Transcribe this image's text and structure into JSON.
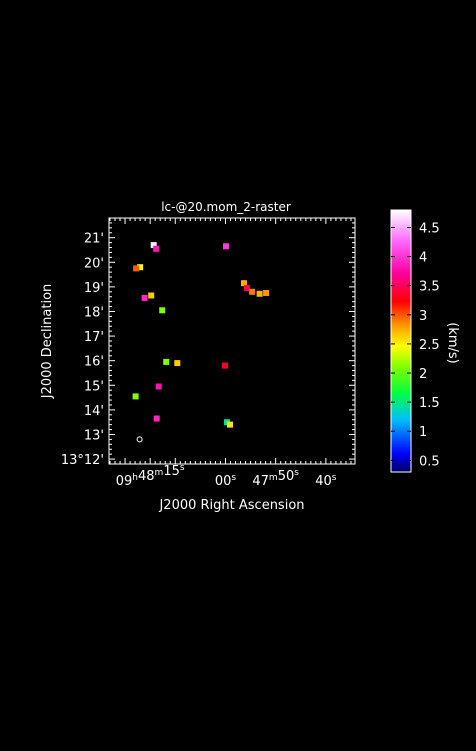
{
  "chart_data": {
    "type": "heatmap",
    "title": "lc-@20.mom_2-raster",
    "xlabel": "J2000 Right Ascension",
    "ylabel": "J2000 Declination",
    "x_ticks": [
      {
        "ra_sec": 75,
        "h": "09",
        "hu": "h",
        "m": "48",
        "mu": "m",
        "s": "15",
        "su": "s"
      },
      {
        "ra_sec": 60,
        "h": "",
        "hu": "",
        "m": "",
        "mu": "",
        "s": "00",
        "su": "s"
      },
      {
        "ra_sec": 50,
        "h": "",
        "hu": "",
        "m": "47",
        "mu": "m",
        "s": "50",
        "su": "s"
      },
      {
        "ra_sec": 40,
        "h": "",
        "hu": "",
        "m": "",
        "mu": "",
        "s": "40",
        "su": "s"
      }
    ],
    "y_ticks": [
      {
        "dec_arcmin": 12,
        "label": "13°12'"
      },
      {
        "dec_arcmin": 13,
        "label": "13'"
      },
      {
        "dec_arcmin": 14,
        "label": "14'"
      },
      {
        "dec_arcmin": 15,
        "label": "15'"
      },
      {
        "dec_arcmin": 16,
        "label": "16'"
      },
      {
        "dec_arcmin": 17,
        "label": "17'"
      },
      {
        "dec_arcmin": 18,
        "label": "18'"
      },
      {
        "dec_arcmin": 19,
        "label": "19'"
      },
      {
        "dec_arcmin": 20,
        "label": "20'"
      },
      {
        "dec_arcmin": 21,
        "label": "21'"
      }
    ],
    "xlim": [
      83.2,
      34.2
    ],
    "ylim": [
      11.8,
      21.8
    ],
    "grid": false,
    "colorbar": {
      "label": "(km/s)",
      "range": [
        0.3,
        4.8
      ],
      "ticks": [
        4.5,
        4,
        3.5,
        3,
        2.5,
        2,
        1.5,
        1,
        0.5
      ],
      "tick_labels": [
        "4.5",
        "4",
        "3.5",
        "3",
        "2.5",
        "2",
        "1.5",
        "1",
        "0.5"
      ]
    },
    "sources": [
      {
        "ra_sec": 74.3,
        "dec_arcmin": 20.7,
        "value": 4.7
      },
      {
        "ra_sec": 73.8,
        "dec_arcmin": 20.55,
        "value": 3.6
      },
      {
        "ra_sec": 59.9,
        "dec_arcmin": 20.65,
        "value": 3.8
      },
      {
        "ra_sec": 77.0,
        "dec_arcmin": 19.8,
        "value": 2.1
      },
      {
        "ra_sec": 77.8,
        "dec_arcmin": 19.75,
        "value": 2.7
      },
      {
        "ra_sec": 56.3,
        "dec_arcmin": 19.15,
        "value": 2.4
      },
      {
        "ra_sec": 55.7,
        "dec_arcmin": 18.95,
        "value": 3.2
      },
      {
        "ra_sec": 54.7,
        "dec_arcmin": 18.8,
        "value": 2.6
      },
      {
        "ra_sec": 53.2,
        "dec_arcmin": 18.72,
        "value": 2.4
      },
      {
        "ra_sec": 51.9,
        "dec_arcmin": 18.75,
        "value": 2.5
      },
      {
        "ra_sec": 74.8,
        "dec_arcmin": 18.65,
        "value": 2.3
      },
      {
        "ra_sec": 76.1,
        "dec_arcmin": 18.55,
        "value": 3.7
      },
      {
        "ra_sec": 72.6,
        "dec_arcmin": 18.05,
        "value": 1.9
      },
      {
        "ra_sec": 71.8,
        "dec_arcmin": 15.95,
        "value": 1.9
      },
      {
        "ra_sec": 69.6,
        "dec_arcmin": 15.9,
        "value": 2.3
      },
      {
        "ra_sec": 60.1,
        "dec_arcmin": 15.8,
        "value": 3.1
      },
      {
        "ra_sec": 73.3,
        "dec_arcmin": 14.95,
        "value": 3.6
      },
      {
        "ra_sec": 77.9,
        "dec_arcmin": 14.55,
        "value": 1.9
      },
      {
        "ra_sec": 73.7,
        "dec_arcmin": 13.65,
        "value": 3.7
      },
      {
        "ra_sec": 59.7,
        "dec_arcmin": 13.5,
        "value": 1.4
      },
      {
        "ra_sec": 59.1,
        "dec_arcmin": 13.4,
        "value": 2.2
      }
    ],
    "beam": {
      "ra_sec": 77.1,
      "dec_arcmin": 12.8
    }
  }
}
